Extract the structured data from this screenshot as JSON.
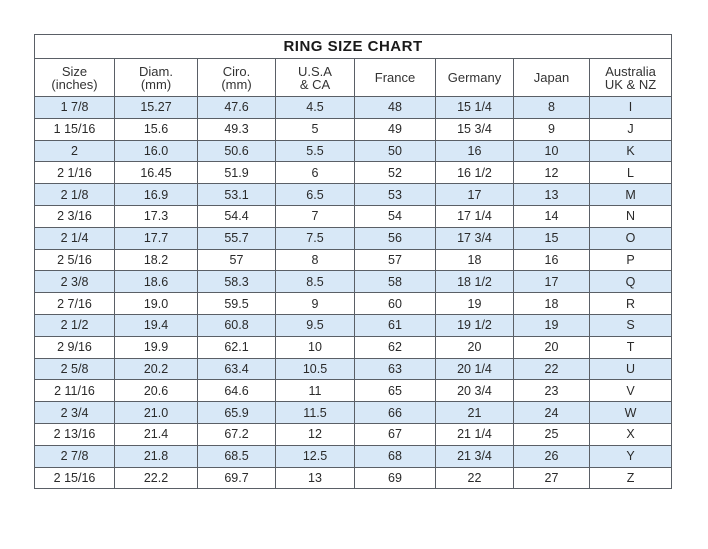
{
  "title": "RING SIZE CHART",
  "columns": [
    [
      "Size",
      "(inches)"
    ],
    [
      "Diam.",
      "(mm)"
    ],
    [
      "Ciro.",
      "(mm)"
    ],
    [
      "U.S.A",
      "& CA"
    ],
    [
      "France",
      ""
    ],
    [
      "Germany",
      ""
    ],
    [
      "Japan",
      ""
    ],
    [
      "Australia",
      "UK & NZ"
    ]
  ],
  "row_highlight_color": "#d8e8f7",
  "rows": [
    [
      "1 7/8",
      "15.27",
      "47.6",
      "4.5",
      "48",
      "15 1/4",
      "8",
      "I"
    ],
    [
      "1 15/16",
      "15.6",
      "49.3",
      "5",
      "49",
      "15 3/4",
      "9",
      "J"
    ],
    [
      "2",
      "16.0",
      "50.6",
      "5.5",
      "50",
      "16",
      "10",
      "K"
    ],
    [
      "2 1/16",
      "16.45",
      "51.9",
      "6",
      "52",
      "16 1/2",
      "12",
      "L"
    ],
    [
      "2 1/8",
      "16.9",
      "53.1",
      "6.5",
      "53",
      "17",
      "13",
      "M"
    ],
    [
      "2 3/16",
      "17.3",
      "54.4",
      "7",
      "54",
      "17 1/4",
      "14",
      "N"
    ],
    [
      "2 1/4",
      "17.7",
      "55.7",
      "7.5",
      "56",
      "17 3/4",
      "15",
      "O"
    ],
    [
      "2 5/16",
      "18.2",
      "57",
      "8",
      "57",
      "18",
      "16",
      "P"
    ],
    [
      "2 3/8",
      "18.6",
      "58.3",
      "8.5",
      "58",
      "18 1/2",
      "17",
      "Q"
    ],
    [
      "2 7/16",
      "19.0",
      "59.5",
      "9",
      "60",
      "19",
      "18",
      "R"
    ],
    [
      "2 1/2",
      "19.4",
      "60.8",
      "9.5",
      "61",
      "19 1/2",
      "19",
      "S"
    ],
    [
      "2 9/16",
      "19.9",
      "62.1",
      "10",
      "62",
      "20",
      "20",
      "T"
    ],
    [
      "2 5/8",
      "20.2",
      "63.4",
      "10.5",
      "63",
      "20 1/4",
      "22",
      "U"
    ],
    [
      "2 11/16",
      "20.6",
      "64.6",
      "11",
      "65",
      "20 3/4",
      "23",
      "V"
    ],
    [
      "2 3/4",
      "21.0",
      "65.9",
      "11.5",
      "66",
      "21",
      "24",
      "W"
    ],
    [
      "2 13/16",
      "21.4",
      "67.2",
      "12",
      "67",
      "21 1/4",
      "25",
      "X"
    ],
    [
      "2 7/8",
      "21.8",
      "68.5",
      "12.5",
      "68",
      "21 3/4",
      "26",
      "Y"
    ],
    [
      "2 15/16",
      "22.2",
      "69.7",
      "13",
      "69",
      "22",
      "27",
      "Z"
    ]
  ]
}
